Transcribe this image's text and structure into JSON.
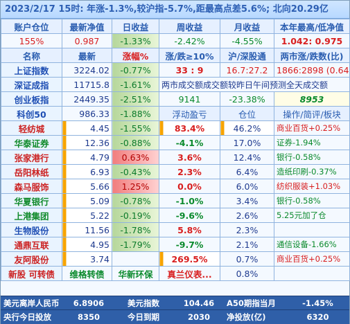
{
  "title": "2023/2/17  15时: 年涨-1.3%,较沪指-5.7%,距最高点差5.6%; 北向20.29亿",
  "account": {
    "headers": [
      "账户仓位",
      "最新净值",
      "日收益",
      "周收益",
      "月收益",
      "本年最高/低净值"
    ],
    "values": [
      "155%",
      "0.987",
      "-1.33%",
      "-2.42%",
      "-4.55%",
      "1.042: 0.975"
    ]
  },
  "index_header": [
    "名称",
    "最新",
    "涨幅%",
    "涨/跌≥10%",
    "沪/深股通",
    "两市涨/跌数(比)"
  ],
  "indices": [
    {
      "name": "上证指数",
      "latest": "3224.02",
      "change": "-0.77%",
      "c4": "33 : 9",
      "c5": "16.7:27.2",
      "c6": "1866:2898 (0.64)"
    },
    {
      "name": "深证成指",
      "latest": "11715.8",
      "change": "-1.61%",
      "c4": "两市成交额成交额较昨日午间预测全天成交额",
      "c5": "",
      "c6": ""
    },
    {
      "name": "创业板指",
      "latest": "2449.35",
      "change": "-2.51%",
      "c4": "9141",
      "c5": "-23.38%",
      "c6": "8953"
    },
    {
      "name": "科创50",
      "latest": "986.33",
      "change": "-1.88%",
      "c4": "浮动盈亏",
      "c5": "仓位",
      "c6": "操作/简评/板块"
    }
  ],
  "stocks": [
    {
      "name": "轻纺城",
      "price": "4.45",
      "change": "-1.55%",
      "pnl": "83.4%",
      "pos": "46.2%",
      "note": "商业百货+0.25%",
      "style": "r"
    },
    {
      "name": "华泰证券",
      "price": "12.36",
      "change": "-0.88%",
      "pnl": "-4.1%",
      "pos": "17.0%",
      "note": "证券-1.94%",
      "style": "g"
    },
    {
      "name": "张家港行",
      "price": "4.79",
      "change": "0.63%",
      "pnl": "3.6%",
      "pos": "12.4%",
      "note": "银行-0.58%",
      "style": "r"
    },
    {
      "name": "岳阳林纸",
      "price": "6.93",
      "change": "-0.43%",
      "pnl": "2.3%",
      "pos": "6.4%",
      "note": "造纸印刷-0.37%",
      "style": "r"
    },
    {
      "name": "森马服饰",
      "price": "5.66",
      "change": "1.25%",
      "pnl": "0.0%",
      "pos": "6.0%",
      "note": "纺织服装+1.03%",
      "style": "r"
    },
    {
      "name": "华夏银行",
      "price": "5.09",
      "change": "-0.78%",
      "pnl": "-1.0%",
      "pos": "3.4%",
      "note": "银行-0.58%",
      "style": "g"
    },
    {
      "name": "上港集团",
      "price": "5.22",
      "change": "-0.19%",
      "pnl": "-9.6%",
      "pos": "2.6%",
      "note": "5.25元加了仓",
      "style": "g"
    },
    {
      "name": "生物股份",
      "price": "11.56",
      "change": "-1.78%",
      "pnl": "5.8%",
      "pos": "2.3%",
      "note": "",
      "style": "b"
    },
    {
      "name": "通鼎互联",
      "price": "4.95",
      "change": "-1.79%",
      "pnl": "-9.7%",
      "pos": "2.1%",
      "note": "通信设备-1.66%",
      "style": "r"
    },
    {
      "name": "友阿股份",
      "price": "3.74",
      "change": "",
      "pnl": "269.5%",
      "pos": "0.7%",
      "note": "商业百货+0.25%",
      "style": "r"
    }
  ],
  "bottom_row": {
    "c1": "新股 可转债",
    "c2": "维格转债",
    "c3": "华新环保",
    "c4": "真兰仪表...",
    "c5": "0.8%",
    "c6": ""
  },
  "footer1": [
    "美元离岸人民币",
    "6.8906",
    "美元指数",
    "104.46",
    "A50期指当月",
    "-1.45%"
  ],
  "footer2": [
    "央行今日投放",
    "8350",
    "今日到期",
    "2030",
    "净投放(亿)",
    "6320"
  ]
}
